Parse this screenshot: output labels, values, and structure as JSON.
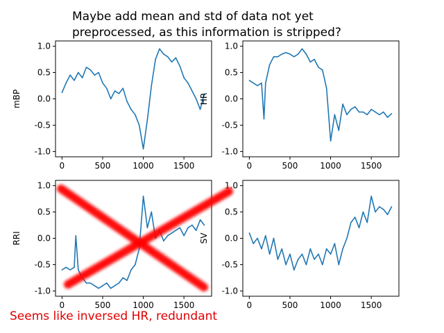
{
  "figure": {
    "title_line1": "Maybe add mean and std of data not yet",
    "title_line2": "preprocessed, as this information is stripped?",
    "note": "Seems like inversed HR, redundant",
    "line_color": "#1f77b4",
    "cross_color": "#ff0000",
    "note_color": "#e00000"
  },
  "chart_data": [
    {
      "type": "line",
      "ylabel": "mBP",
      "xlim": [
        -80,
        1840
      ],
      "ylim": [
        -1.1,
        1.1
      ],
      "xticks": [
        0,
        500,
        1000,
        1500
      ],
      "yticks": [
        -1.0,
        -0.5,
        0.0,
        0.5,
        1.0
      ],
      "x": [
        0,
        50,
        100,
        150,
        200,
        250,
        300,
        350,
        400,
        450,
        500,
        550,
        600,
        650,
        700,
        750,
        800,
        850,
        900,
        950,
        1000,
        1050,
        1100,
        1150,
        1200,
        1250,
        1300,
        1350,
        1400,
        1450,
        1500,
        1550,
        1600,
        1650,
        1700,
        1750
      ],
      "y": [
        0.12,
        0.3,
        0.45,
        0.35,
        0.5,
        0.4,
        0.6,
        0.55,
        0.45,
        0.5,
        0.3,
        0.2,
        0.0,
        0.15,
        0.1,
        0.2,
        -0.05,
        -0.2,
        -0.3,
        -0.5,
        -0.95,
        -0.4,
        0.25,
        0.75,
        0.95,
        0.85,
        0.8,
        0.7,
        0.78,
        0.62,
        0.4,
        0.3,
        0.15,
        0.0,
        -0.2,
        0.1
      ]
    },
    {
      "type": "line",
      "ylabel": "HR",
      "xlim": [
        -80,
        1840
      ],
      "ylim": [
        -1.1,
        1.1
      ],
      "xticks": [
        0,
        500,
        1000,
        1500
      ],
      "yticks": [
        -1.0,
        -0.5,
        0.0,
        0.5,
        1.0
      ],
      "x": [
        0,
        50,
        100,
        150,
        180,
        200,
        250,
        300,
        350,
        400,
        450,
        500,
        550,
        600,
        650,
        700,
        750,
        800,
        850,
        900,
        950,
        1000,
        1050,
        1100,
        1150,
        1200,
        1250,
        1300,
        1350,
        1400,
        1450,
        1500,
        1550,
        1600,
        1650,
        1700,
        1750
      ],
      "y": [
        0.35,
        0.3,
        0.25,
        0.3,
        -0.38,
        0.3,
        0.65,
        0.8,
        0.8,
        0.85,
        0.88,
        0.85,
        0.8,
        0.85,
        0.95,
        0.85,
        0.7,
        0.75,
        0.6,
        0.55,
        0.2,
        -0.8,
        -0.3,
        -0.6,
        -0.1,
        -0.3,
        -0.2,
        -0.15,
        -0.25,
        -0.25,
        -0.3,
        -0.2,
        -0.25,
        -0.3,
        -0.25,
        -0.35,
        -0.28
      ]
    },
    {
      "type": "line",
      "ylabel": "RRI",
      "xlim": [
        -80,
        1840
      ],
      "ylim": [
        -1.1,
        1.1
      ],
      "xticks": [
        0,
        500,
        1000,
        1500
      ],
      "yticks": [
        -1.0,
        -0.5,
        0.0,
        0.5,
        1.0
      ],
      "x": [
        0,
        50,
        100,
        150,
        170,
        200,
        250,
        300,
        350,
        400,
        450,
        500,
        550,
        600,
        650,
        700,
        750,
        800,
        850,
        900,
        950,
        1000,
        1050,
        1100,
        1150,
        1200,
        1250,
        1300,
        1350,
        1400,
        1450,
        1500,
        1550,
        1600,
        1650,
        1700,
        1750
      ],
      "y": [
        -0.6,
        -0.55,
        -0.6,
        -0.55,
        0.05,
        -0.6,
        -0.75,
        -0.85,
        -0.85,
        -0.9,
        -0.95,
        -0.9,
        -0.85,
        -0.95,
        -0.9,
        -0.85,
        -0.75,
        -0.8,
        -0.6,
        -0.5,
        -0.2,
        0.8,
        0.2,
        0.5,
        0.0,
        0.15,
        -0.05,
        0.05,
        0.1,
        0.15,
        0.2,
        0.05,
        0.2,
        0.25,
        0.15,
        0.35,
        0.25
      ]
    },
    {
      "type": "line",
      "ylabel": "SV",
      "xlim": [
        -80,
        1840
      ],
      "ylim": [
        -1.1,
        1.1
      ],
      "xticks": [
        0,
        500,
        1000,
        1500
      ],
      "yticks": [
        -1.0,
        -0.5,
        0.0,
        0.5,
        1.0
      ],
      "x": [
        0,
        50,
        100,
        150,
        200,
        250,
        300,
        350,
        400,
        450,
        500,
        550,
        600,
        650,
        700,
        750,
        800,
        850,
        900,
        950,
        1000,
        1050,
        1100,
        1150,
        1200,
        1250,
        1300,
        1350,
        1400,
        1450,
        1500,
        1550,
        1600,
        1650,
        1700,
        1750
      ],
      "y": [
        0.1,
        -0.1,
        0.0,
        -0.2,
        0.05,
        -0.3,
        0.0,
        -0.4,
        -0.2,
        -0.5,
        -0.3,
        -0.6,
        -0.4,
        -0.3,
        -0.5,
        -0.2,
        -0.4,
        -0.3,
        -0.5,
        -0.2,
        -0.3,
        -0.1,
        -0.5,
        -0.2,
        0.0,
        0.3,
        0.4,
        0.2,
        0.5,
        0.3,
        0.8,
        0.5,
        0.6,
        0.55,
        0.45,
        0.6
      ]
    }
  ]
}
